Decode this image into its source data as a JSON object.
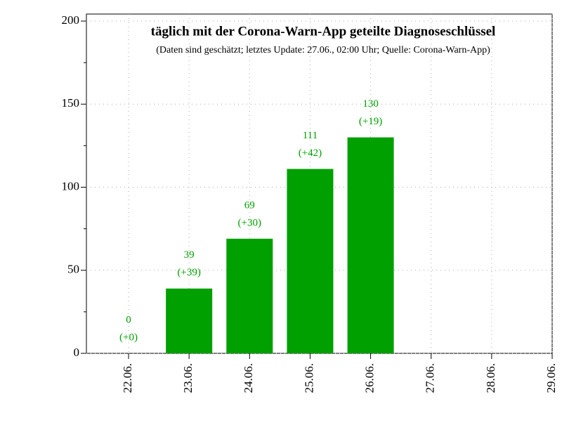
{
  "chart_data": {
    "type": "bar",
    "title": "täglich mit der Corona-Warn-App geteilte Diagnoseschlüssel",
    "subtitle": "(Daten sind geschätzt; letztes Update: 27.06., 02:00 Uhr; Quelle: Corona-Warn-App)",
    "categories": [
      "22.06.",
      "23.06.",
      "24.06.",
      "25.06.",
      "26.06.",
      "27.06.",
      "28.06.",
      "29.06."
    ],
    "values": [
      0,
      39,
      69,
      111,
      130,
      null,
      null,
      null
    ],
    "changes": {
      "values": [
        0,
        39,
        30,
        42,
        19,
        null,
        null,
        null
      ],
      "value_labels": [
        "(+0)",
        "(+39)",
        "(+30)",
        "(+42)",
        "(+19)",
        null,
        null,
        null
      ]
    },
    "color": "#00a000",
    "ylim": [
      0,
      200
    ],
    "yticks": [
      0,
      50,
      100,
      150,
      200
    ],
    "yminor": [
      25,
      75,
      125,
      175
    ],
    "grid": true
  }
}
